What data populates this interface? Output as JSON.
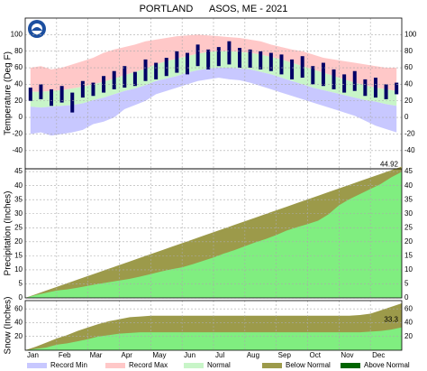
{
  "title": "PORTLAND      ASOS, ME - 2021",
  "categories": [
    "Jan",
    "Feb",
    "Mar",
    "Apr",
    "May",
    "Jun",
    "Jul",
    "Aug",
    "Sep",
    "Oct",
    "Nov",
    "Dec"
  ],
  "legend": [
    {
      "name": "Record Min",
      "color": "#c8c8ff"
    },
    {
      "name": "Record Max",
      "color": "#ffc8c8"
    },
    {
      "name": "Normal",
      "color": "#c8f5c8"
    },
    {
      "name": "Below Normal",
      "color": "#9c9a4a"
    },
    {
      "name": "Above Normal",
      "color": "#006400"
    }
  ],
  "chart_data": [
    {
      "type": "range",
      "ylabel": "Temperature (Deg F)",
      "ylim": [
        -62,
        120
      ],
      "yticks": [
        -40,
        -20,
        0,
        20,
        40,
        60,
        80,
        100
      ],
      "grid": true,
      "series": [
        {
          "name": "Record Max",
          "color": "#ffc8c8",
          "values": [
            60,
            62,
            58,
            60,
            64,
            68,
            72,
            78,
            82,
            85,
            88,
            92,
            94,
            96,
            98,
            99,
            100,
            99,
            98,
            97,
            96,
            94,
            92,
            88,
            85,
            82,
            80,
            76,
            72,
            70,
            68,
            66,
            64,
            62,
            60,
            60
          ]
        },
        {
          "name": "Normal",
          "color": "#c8f5c8",
          "values": [
            31,
            31,
            32,
            33,
            35,
            37,
            40,
            43,
            47,
            51,
            55,
            59,
            64,
            68,
            71,
            74,
            77,
            79,
            80,
            80,
            79,
            78,
            76,
            73,
            70,
            66,
            62,
            58,
            54,
            50,
            46,
            42,
            39,
            36,
            34,
            32
          ],
          "low": [
            13,
            12,
            13,
            14,
            15,
            17,
            21,
            24,
            28,
            32,
            35,
            39,
            44,
            47,
            50,
            54,
            57,
            59,
            60,
            60,
            59,
            58,
            55,
            52,
            48,
            44,
            40,
            36,
            33,
            30,
            27,
            24,
            21,
            19,
            16,
            14
          ]
        },
        {
          "name": "Record Min",
          "color": "#c8c8ff",
          "values": [
            -20,
            -18,
            -22,
            -20,
            -18,
            -15,
            -8,
            -5,
            0,
            10,
            15,
            20,
            28,
            32,
            36,
            40,
            44,
            46,
            48,
            46,
            45,
            42,
            38,
            34,
            30,
            26,
            22,
            18,
            14,
            10,
            6,
            2,
            -4,
            -10,
            -14,
            -18
          ]
        }
      ],
      "observed": {
        "color": "#000066",
        "values": [
          36,
          40,
          34,
          38,
          30,
          44,
          42,
          50,
          56,
          62,
          55,
          70,
          66,
          72,
          80,
          78,
          88,
          82,
          85,
          92,
          84,
          82,
          80,
          78,
          76,
          70,
          74,
          62,
          66,
          58,
          52,
          56,
          46,
          48,
          40,
          42
        ],
        "low": [
          20,
          22,
          14,
          18,
          6,
          24,
          26,
          30,
          34,
          36,
          38,
          44,
          46,
          50,
          54,
          52,
          62,
          58,
          62,
          64,
          60,
          60,
          58,
          56,
          52,
          46,
          48,
          40,
          38,
          34,
          30,
          32,
          26,
          24,
          22,
          28
        ]
      }
    },
    {
      "type": "area",
      "ylabel": "Precipitation (Inches)",
      "ylim": [
        0,
        46
      ],
      "yticks": [
        0,
        5,
        10,
        15,
        20,
        25,
        30,
        35,
        40,
        45
      ],
      "grid": true,
      "series": [
        {
          "color": "#9c9a4a",
          "values": [
            1.3,
            2.6,
            3.9,
            5.2,
            6.5,
            7.8,
            9.1,
            10.4,
            11.7,
            13.0,
            14.3,
            15.6,
            16.9,
            18.2,
            19.5,
            20.8,
            22.1,
            23.4,
            24.7,
            26.0,
            27.3,
            28.6,
            29.9,
            31.2,
            32.5,
            33.8,
            35.1,
            36.4,
            37.7,
            39.0,
            40.3,
            41.6,
            42.9,
            44.2,
            45.5,
            46.8
          ]
        },
        {
          "color": "#80ee80",
          "values": [
            1.0,
            1.8,
            2.6,
            3.0,
            3.6,
            4.3,
            5.0,
            5.6,
            6.2,
            6.8,
            7.6,
            8.5,
            9.4,
            10.2,
            10.9,
            12.0,
            13.2,
            14.4,
            15.8,
            17.0,
            18.4,
            19.8,
            21.0,
            22.4,
            24.0,
            25.2,
            26.3,
            27.5,
            29.8,
            33.0,
            35.2,
            37.0,
            38.8,
            40.6,
            43.0,
            44.92
          ]
        }
      ]
    },
    {
      "type": "area",
      "ylabel": "Snow (Inches)",
      "ylim": [
        0,
        72
      ],
      "yticks": [
        20,
        40,
        60
      ],
      "grid": true,
      "series": [
        {
          "color": "#9c9a4a",
          "values": [
            5,
            11,
            17,
            22,
            28,
            33,
            38,
            42,
            45,
            48,
            49,
            50,
            50,
            50,
            50,
            50,
            50,
            50,
            50,
            50,
            50,
            50,
            50,
            50,
            50,
            50,
            50,
            50,
            50,
            50,
            50,
            51,
            53,
            58,
            63,
            68
          ]
        },
        {
          "color": "#80ee80",
          "values": [
            2,
            4,
            8,
            10,
            13,
            16,
            20,
            22,
            24,
            25,
            26,
            26,
            26,
            26,
            26,
            26,
            26,
            26,
            26,
            26,
            26,
            26,
            26,
            26,
            26,
            26,
            26,
            26,
            26,
            26,
            26,
            26,
            27,
            28,
            30,
            33.3
          ]
        }
      ]
    }
  ]
}
